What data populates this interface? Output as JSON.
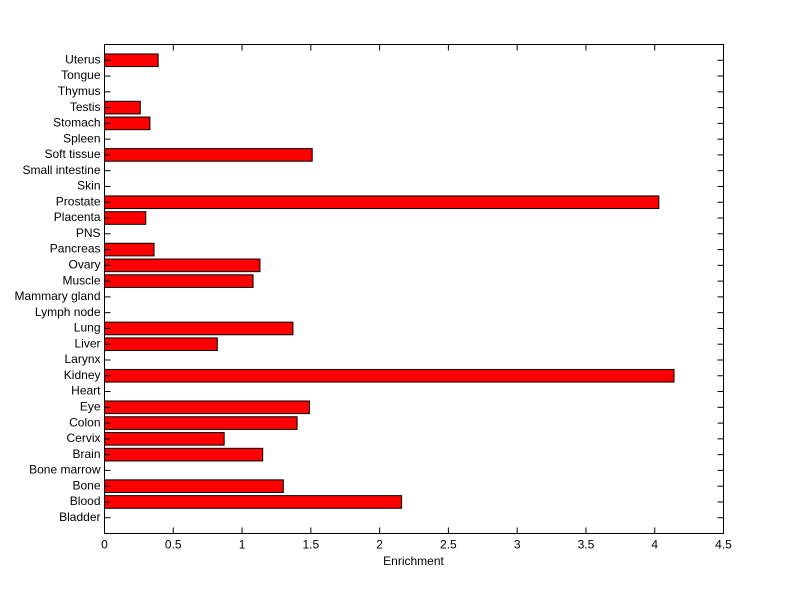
{
  "chart_data": {
    "type": "barh",
    "xlabel": "Enrichment",
    "categories": [
      "Bladder",
      "Blood",
      "Bone",
      "Bone marrow",
      "Brain",
      "Cervix",
      "Colon",
      "Eye",
      "Heart",
      "Kidney",
      "Larynx",
      "Liver",
      "Lung",
      "Lymph node",
      "Mammary gland",
      "Muscle",
      "Ovary",
      "Pancreas",
      "PNS",
      "Placenta",
      "Prostate",
      "Skin",
      "Small intestine",
      "Soft tissue",
      "Spleen",
      "Stomach",
      "Testis",
      "Thymus",
      "Tongue",
      "Uterus"
    ],
    "values": [
      0,
      2.16,
      1.3,
      0,
      1.15,
      0.87,
      1.4,
      1.49,
      0,
      4.14,
      0,
      0.82,
      1.37,
      0,
      0,
      1.08,
      1.13,
      0.36,
      0,
      0.3,
      4.03,
      0,
      0,
      1.51,
      0,
      0.33,
      0.26,
      0,
      0,
      0.39
    ],
    "color": "#ff0000",
    "xlim": [
      0,
      4.5
    ],
    "xticks": [
      0,
      0.5,
      1,
      1.5,
      2,
      2.5,
      3,
      3.5,
      4,
      4.5
    ]
  }
}
